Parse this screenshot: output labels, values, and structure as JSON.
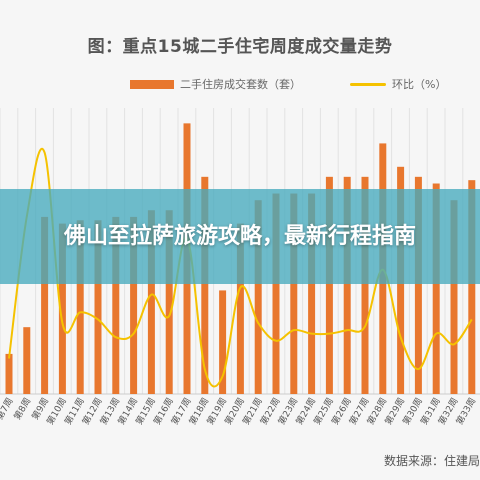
{
  "chart_data": {
    "type": "bar",
    "title": "图：重点15城二手住宅周度成交量走势",
    "xlabel": "",
    "ylabel": "",
    "categories": [
      "第7周",
      "第8周",
      "第9周",
      "第10周",
      "第11周",
      "第12周",
      "第13周",
      "第14周",
      "第15周",
      "第16周",
      "第17周",
      "第18周",
      "第19周",
      "第20周",
      "第21周",
      "第22周",
      "第23周",
      "第24周",
      "第25周",
      "第26周",
      "第27周",
      "第28周",
      "第29周",
      "第30周",
      "第31周",
      "第32周",
      "第33周"
    ],
    "series": [
      {
        "name": "二手住房成交套数（套）",
        "type": "bar",
        "color": "#e8772e",
        "values": [
          1.2,
          2.0,
          5.3,
          5.1,
          5.2,
          5.2,
          5.3,
          5.3,
          5.5,
          5.5,
          8.1,
          6.5,
          3.1,
          5.1,
          5.8,
          6.0,
          6.0,
          6.0,
          6.5,
          6.5,
          6.5,
          7.5,
          6.8,
          6.5,
          6.3,
          5.8,
          6.4
        ]
      },
      {
        "name": "环比（%）",
        "type": "line",
        "color": "#f5c200",
        "values": [
          1.0,
          5.0,
          6.8,
          2.0,
          2.3,
          2.1,
          1.6,
          1.7,
          2.8,
          2.2,
          4.4,
          0.7,
          0.5,
          3.0,
          2.0,
          1.5,
          1.8,
          1.7,
          1.7,
          1.8,
          1.9,
          3.5,
          1.6,
          0.7,
          1.7,
          1.4,
          2.1
        ]
      }
    ],
    "legend": "top-center",
    "grid": "vertical"
  },
  "legend": {
    "bar_label": "二手住房成交套数（套）",
    "line_label": "环比（%）"
  },
  "banner": {
    "text": "佛山至拉萨旅游攻略，最新行程指南"
  },
  "source": {
    "text": "数据来源：住建局"
  },
  "colors": {
    "bar": "#e8772e",
    "line": "#f5c200",
    "banner": "#46aabe"
  }
}
